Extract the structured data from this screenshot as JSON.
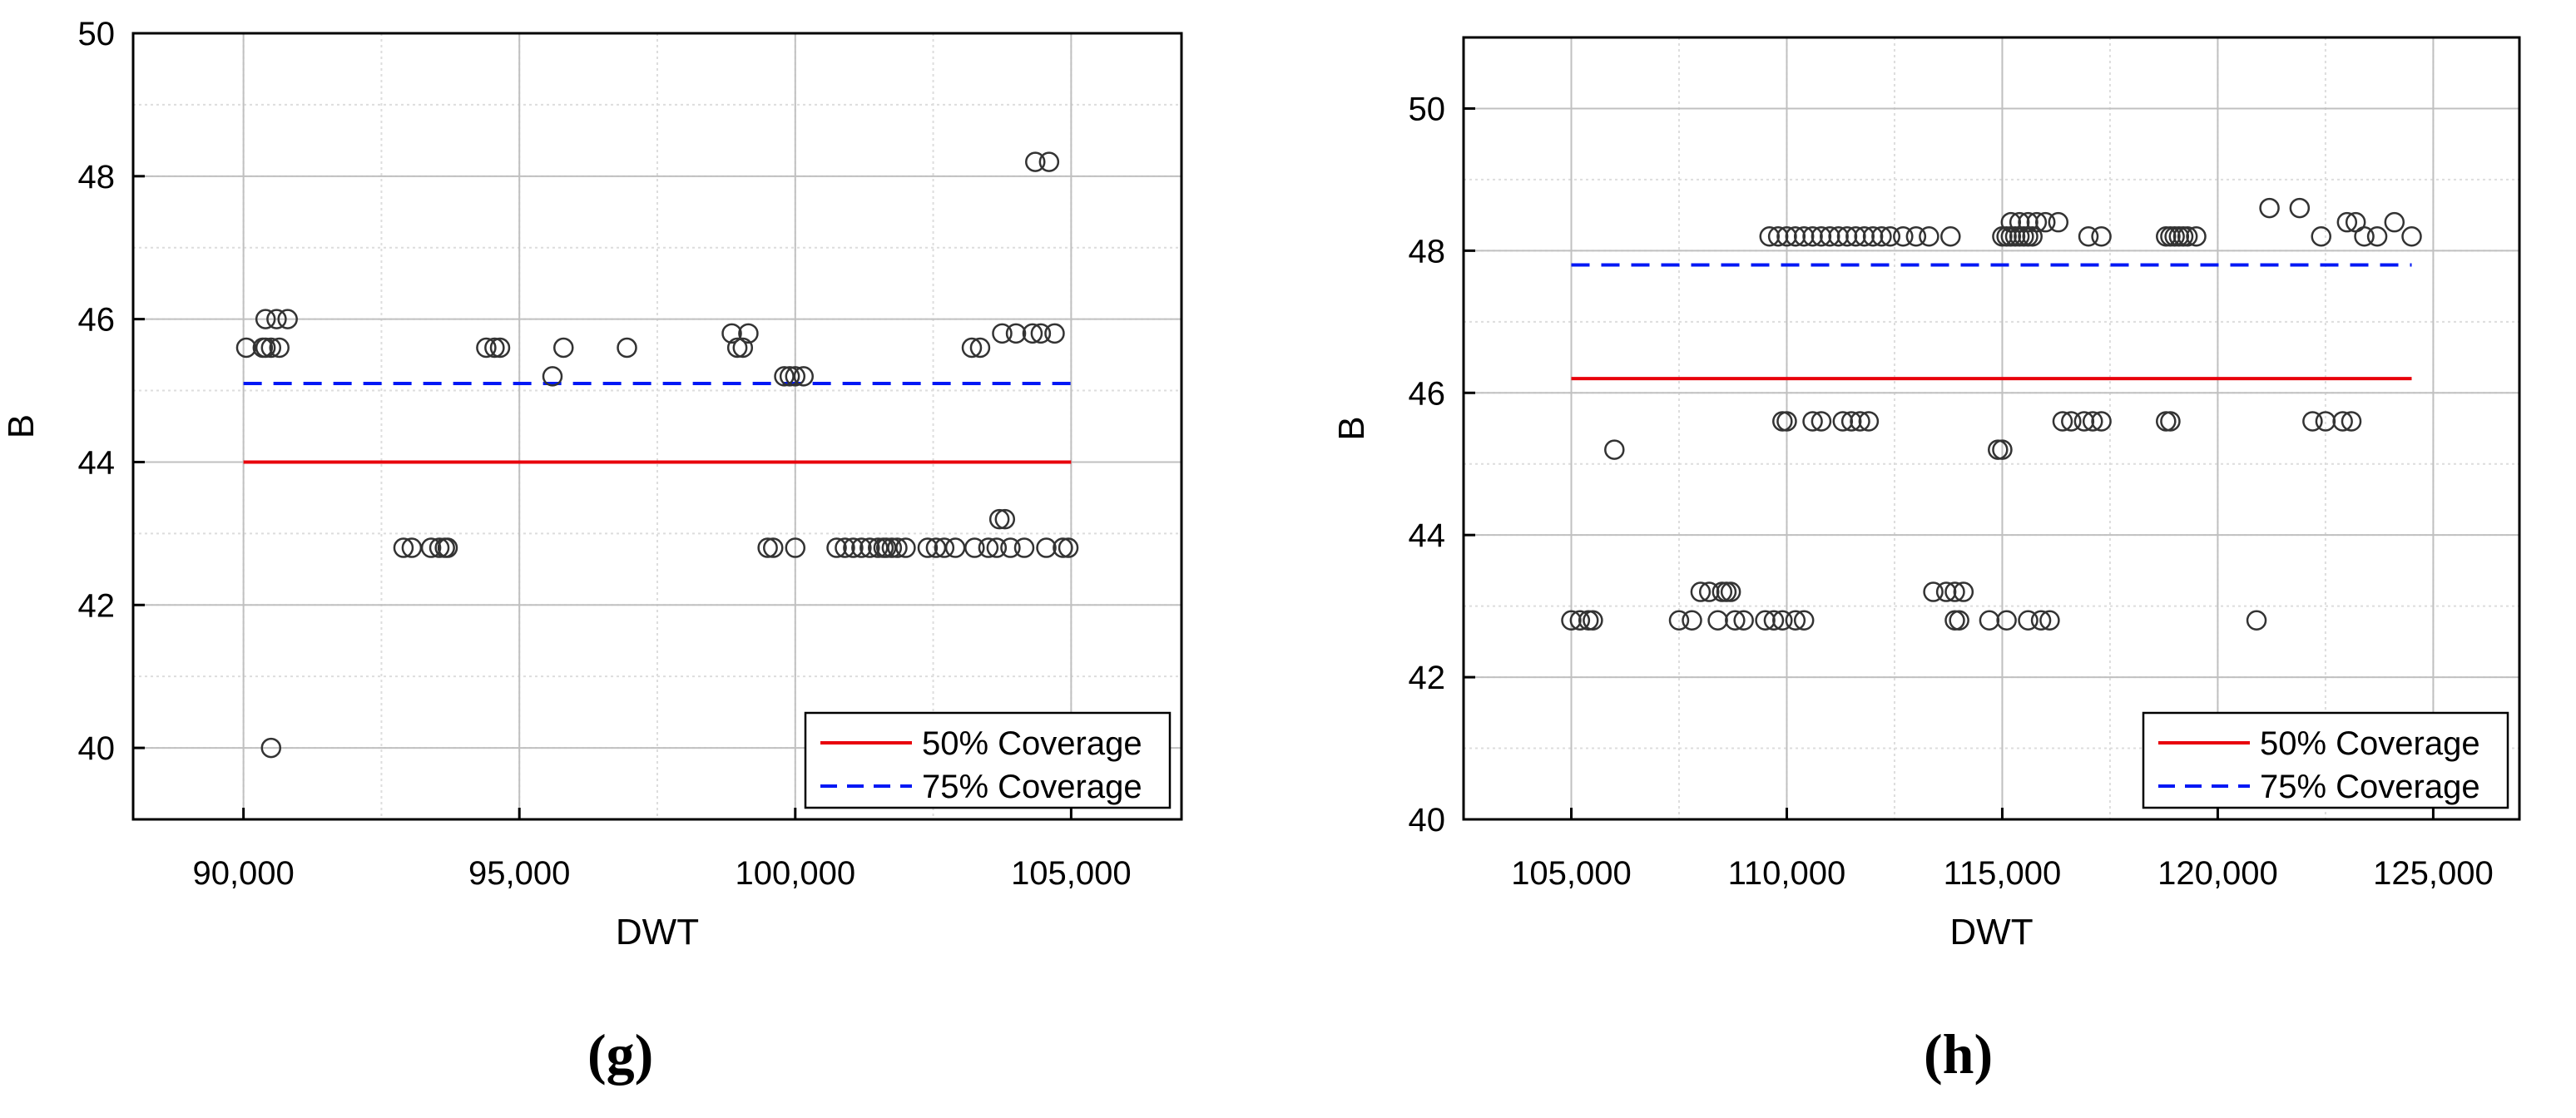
{
  "colors": {
    "line50": "#e8000b",
    "line75": "#0018f5",
    "marker": "#333333",
    "grid": "#c0c0c0",
    "grid_minor": "#dddddd",
    "axis": "#000000"
  },
  "chart_data": [
    {
      "type": "scatter",
      "panel_label": "(g)",
      "xlabel": "DWT",
      "ylabel": "B",
      "xlim": [
        88000,
        107000
      ],
      "ylim": [
        39,
        50
      ],
      "xticks": [
        90000,
        95000,
        100000,
        105000
      ],
      "xtick_labels": [
        "90,000",
        "95,000",
        "100,000",
        "105,000"
      ],
      "yticks": [
        40,
        42,
        44,
        46,
        48,
        50
      ],
      "ytick_labels": [
        "40",
        "42",
        "44",
        "46",
        "48",
        "50"
      ],
      "grid": true,
      "legend": {
        "position": "bottom-right",
        "entries": [
          {
            "label": "50% Coverage",
            "style": "solid",
            "color": "#e8000b"
          },
          {
            "label": "75% Coverage",
            "style": "dashed",
            "color": "#0018f5"
          }
        ]
      },
      "lines": [
        {
          "name": "50% Coverage",
          "x": [
            90000,
            105000
          ],
          "y": [
            44.0,
            44.0
          ]
        },
        {
          "name": "75% Coverage",
          "x": [
            90000,
            105000
          ],
          "y": [
            45.1,
            45.1
          ]
        }
      ],
      "points": {
        "x": [
          90050,
          90350,
          90500,
          90650,
          90400,
          90600,
          90800,
          90500,
          90400,
          92900,
          93050,
          93400,
          93550,
          93650,
          93700,
          94400,
          94550,
          94650,
          95600,
          95800,
          96950,
          98850,
          98950,
          99050,
          99150,
          99500,
          99600,
          99800,
          99900,
          100000,
          100150,
          100000,
          100750,
          100900,
          101050,
          101200,
          101350,
          101500,
          101600,
          101650,
          101750,
          101850,
          102000,
          102400,
          102550,
          102700,
          102900,
          103200,
          103250,
          103350,
          103500,
          103650,
          103700,
          103800,
          103750,
          103900,
          104000,
          104150,
          104300,
          104450,
          104700,
          104550,
          104850,
          104950,
          104350,
          104600
        ],
        "y": [
          45.6,
          45.6,
          45.6,
          45.6,
          46.0,
          46.0,
          46.0,
          40.0,
          45.6,
          42.8,
          42.8,
          42.8,
          42.8,
          42.8,
          42.8,
          45.6,
          45.6,
          45.6,
          45.2,
          45.6,
          45.6,
          45.8,
          45.6,
          45.6,
          45.8,
          42.8,
          42.8,
          45.2,
          45.2,
          45.2,
          45.2,
          42.8,
          42.8,
          42.8,
          42.8,
          42.8,
          42.8,
          42.8,
          42.8,
          42.8,
          42.8,
          42.8,
          42.8,
          42.8,
          42.8,
          42.8,
          42.8,
          45.6,
          42.8,
          45.6,
          42.8,
          42.8,
          43.2,
          43.2,
          45.8,
          42.8,
          45.8,
          42.8,
          45.8,
          45.8,
          45.8,
          42.8,
          42.8,
          42.8,
          48.2,
          48.2
        ]
      }
    },
    {
      "type": "scatter",
      "panel_label": "(h)",
      "xlabel": "DWT",
      "ylabel": "B",
      "xlim": [
        102500,
        127000
      ],
      "ylim": [
        40,
        51
      ],
      "xticks": [
        105000,
        110000,
        115000,
        120000,
        125000
      ],
      "xtick_labels": [
        "105,000",
        "110,000",
        "115,000",
        "120,000",
        "125,000"
      ],
      "yticks": [
        40,
        42,
        44,
        46,
        48,
        50
      ],
      "ytick_labels": [
        "40",
        "42",
        "44",
        "46",
        "48",
        "50"
      ],
      "grid": true,
      "legend": {
        "position": "bottom-right",
        "entries": [
          {
            "label": "50% Coverage",
            "style": "solid",
            "color": "#e8000b"
          },
          {
            "label": "75% Coverage",
            "style": "dashed",
            "color": "#0018f5"
          }
        ]
      },
      "lines": [
        {
          "name": "50% Coverage",
          "x": [
            105000,
            124500
          ],
          "y": [
            46.2,
            46.2
          ]
        },
        {
          "name": "75% Coverage",
          "x": [
            105000,
            124500
          ],
          "y": [
            47.8,
            47.8
          ]
        }
      ],
      "points": {
        "x": [
          105000,
          105200,
          105400,
          105500,
          106000,
          107500,
          107800,
          108000,
          108200,
          108400,
          108500,
          108600,
          108700,
          108800,
          109000,
          109500,
          109700,
          109900,
          110200,
          110400,
          109600,
          109800,
          110000,
          110200,
          110400,
          110600,
          110800,
          111000,
          111200,
          111400,
          111600,
          111800,
          112000,
          112200,
          112400,
          112700,
          113000,
          113300,
          113800,
          109900,
          110000,
          110600,
          110800,
          111300,
          111500,
          111700,
          111900,
          113400,
          113700,
          113900,
          114100,
          113900,
          114000,
          114700,
          114900,
          115000,
          115100,
          115600,
          115900,
          116100,
          115100,
          115200,
          115300,
          115400,
          115500,
          115600,
          115700,
          115800,
          116000,
          116300,
          115000,
          115200,
          115400,
          115600,
          116400,
          116600,
          116900,
          117100,
          117300,
          117000,
          117300,
          118800,
          118900,
          118800,
          118900,
          119000,
          119100,
          119200,
          119300,
          119500,
          120900,
          121200,
          121900,
          122200,
          122400,
          122500,
          122900,
          123100,
          123000,
          123200,
          123400,
          123700,
          124100,
          124500
        ],
        "y": [
          42.8,
          42.8,
          42.8,
          42.8,
          45.2,
          42.8,
          42.8,
          43.2,
          43.2,
          42.8,
          43.2,
          43.2,
          43.2,
          42.8,
          42.8,
          42.8,
          42.8,
          42.8,
          42.8,
          42.8,
          48.2,
          48.2,
          48.2,
          48.2,
          48.2,
          48.2,
          48.2,
          48.2,
          48.2,
          48.2,
          48.2,
          48.2,
          48.2,
          48.2,
          48.2,
          48.2,
          48.2,
          48.2,
          48.2,
          45.6,
          45.6,
          45.6,
          45.6,
          45.6,
          45.6,
          45.6,
          45.6,
          43.2,
          43.2,
          43.2,
          43.2,
          42.8,
          42.8,
          42.8,
          45.2,
          45.2,
          42.8,
          42.8,
          42.8,
          42.8,
          48.2,
          48.4,
          48.2,
          48.4,
          48.2,
          48.4,
          48.2,
          48.4,
          48.4,
          48.4,
          48.2,
          48.2,
          48.2,
          48.2,
          45.6,
          45.6,
          45.6,
          45.6,
          45.6,
          48.2,
          48.2,
          45.6,
          45.6,
          48.2,
          48.2,
          48.2,
          48.2,
          48.2,
          48.2,
          48.2,
          42.8,
          48.6,
          48.6,
          45.6,
          48.2,
          45.6,
          45.6,
          45.6,
          48.4,
          48.4,
          48.2,
          48.2,
          48.4,
          48.2
        ]
      }
    }
  ]
}
